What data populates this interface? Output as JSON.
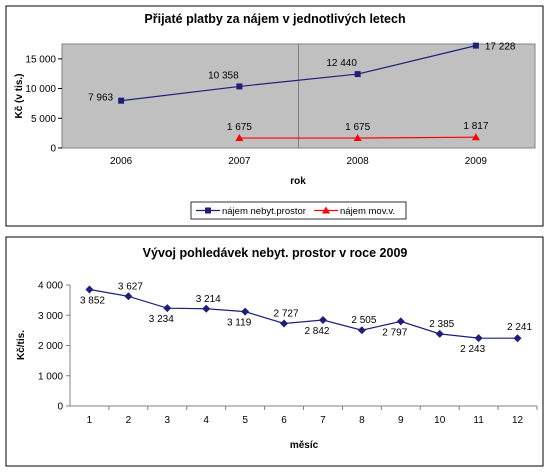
{
  "colors": {
    "series1": "#1f1f7a",
    "series2": "#ff0000",
    "chart2_series": "#1f1f7a",
    "plot_bg_1": "#c0c0c0",
    "plot_bg_2": "#ffffff",
    "frame": "#808080"
  },
  "chart_data": [
    {
      "type": "line",
      "title": "Přijaté platby za nájem v jednotlivých letech",
      "xlabel": "rok",
      "ylabel": "Kč (v tis.)",
      "categories": [
        "2006",
        "2007",
        "2008",
        "2009"
      ],
      "ylim": [
        0,
        15000
      ],
      "yticks": [
        "0",
        "5 000",
        "10 000",
        "15 000"
      ],
      "grid": false,
      "legend_position": "bottom",
      "series": [
        {
          "name": "nájem nebyt.prostor",
          "marker": "square-icon",
          "values": [
            7963,
            10358,
            12440,
            17228
          ],
          "labels": [
            "7 963",
            "10 358",
            "12 440",
            "17 228"
          ]
        },
        {
          "name": "nájem mov.v.",
          "marker": "triangle-icon",
          "values": [
            null,
            1675,
            1675,
            1817
          ],
          "labels": [
            null,
            "1 675",
            "1 675",
            "1 817"
          ]
        }
      ]
    },
    {
      "type": "line",
      "title": "Vývoj pohledávek nebyt. prostor v roce 2009",
      "xlabel": "měsíc",
      "ylabel": "Kč/tis.",
      "categories": [
        "1",
        "2",
        "3",
        "4",
        "5",
        "6",
        "7",
        "8",
        "9",
        "10",
        "11",
        "12"
      ],
      "ylim": [
        0,
        4000
      ],
      "yticks": [
        "0",
        "1 000",
        "2 000",
        "3 000",
        "4 000"
      ],
      "grid": false,
      "series": [
        {
          "marker": "diamond-icon",
          "values": [
            3852,
            3627,
            3234,
            3214,
            3119,
            2727,
            2842,
            2505,
            2797,
            2385,
            2243,
            2241
          ],
          "labels": [
            "3 852",
            "3 627",
            "3 234",
            "3 214",
            "3 119",
            "2 727",
            "2 842",
            "2 505",
            "2 797",
            "2 385",
            "2 243",
            "2 241"
          ]
        }
      ]
    }
  ]
}
